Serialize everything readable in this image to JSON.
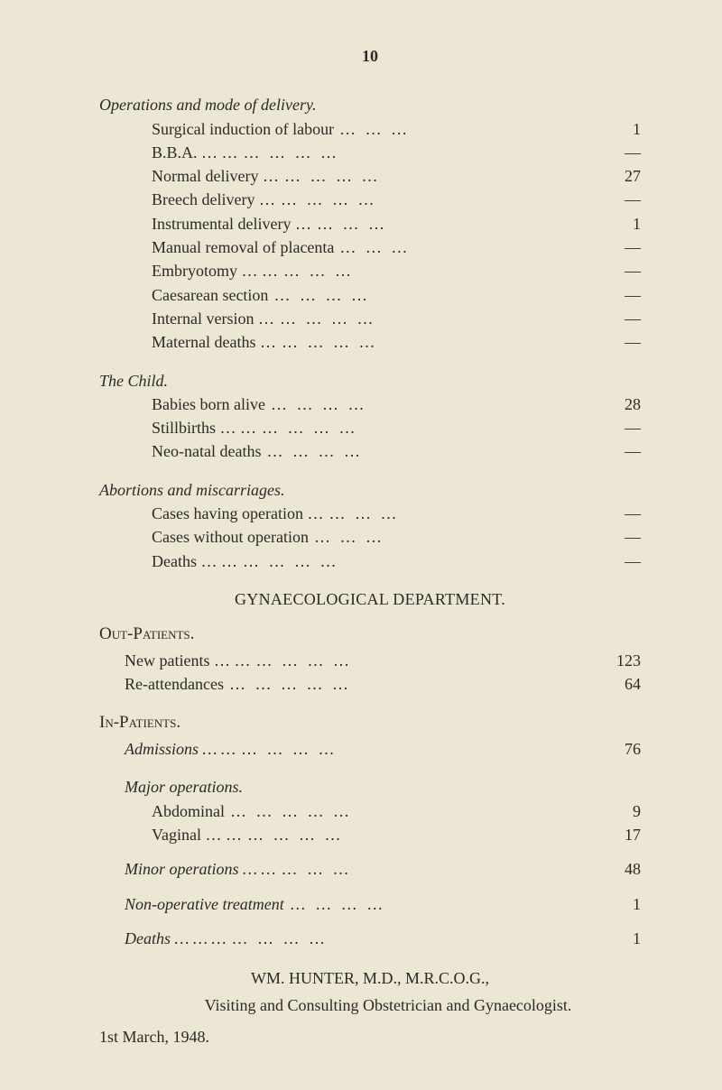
{
  "page_number": "10",
  "sections": {
    "operations": {
      "heading": "Operations and mode of delivery.",
      "rows": [
        {
          "label": "Surgical induction of labour",
          "dots": "…    …    …",
          "value": "1"
        },
        {
          "label": "B.B.A.    …    …",
          "dots": "…    …    …    …",
          "value": "—"
        },
        {
          "label": "Normal delivery …",
          "dots": "…    …    …    …",
          "value": "27"
        },
        {
          "label": "Breech delivery  …",
          "dots": "…    …    …    …",
          "value": "—"
        },
        {
          "label": "Instrumental delivery   …",
          "dots": "…    …    …",
          "value": "1"
        },
        {
          "label": "Manual removal of placenta",
          "dots": "…    …    …",
          "value": "—"
        },
        {
          "label": "Embryotomy     …    …",
          "dots": "…    …    …",
          "value": "—"
        },
        {
          "label": "Caesarean section",
          "dots": "…    …    …    …",
          "value": "—"
        },
        {
          "label": "Internal version …",
          "dots": "…    …    …    …",
          "value": "—"
        },
        {
          "label": "Maternal deaths …",
          "dots": "…    …    …    …",
          "value": "—"
        }
      ]
    },
    "child": {
      "heading": "The Child.",
      "rows": [
        {
          "label": "Babies born alive",
          "dots": "…    …    …    …",
          "value": "28"
        },
        {
          "label": "Stillbirths …    …",
          "dots": "…    …    …    …",
          "value": "—"
        },
        {
          "label": "Neo-natal deaths",
          "dots": "…    …    …    …",
          "value": "—"
        }
      ]
    },
    "abortions": {
      "heading": "Abortions and miscarriages.",
      "rows": [
        {
          "label": "Cases having operation  …",
          "dots": "…    …    …",
          "value": "—"
        },
        {
          "label": "Cases without operation",
          "dots": "…    …    …",
          "value": "—"
        },
        {
          "label": "Deaths    …     …",
          "dots": "…    …    …    …",
          "value": "—"
        }
      ]
    }
  },
  "dept_heading": "GYNAECOLOGICAL DEPARTMENT.",
  "outpatients": {
    "heading": "Out-Patients.",
    "rows": [
      {
        "label": "New patients …    …",
        "dots": "…    …    …    …",
        "value": "123"
      },
      {
        "label": "Re-attendances",
        "dots": "…    …    …    …    …",
        "value": "64"
      }
    ]
  },
  "inpatients_heading": "In-Patients.",
  "admissions": {
    "rows": [
      {
        "label": "Admissions     …     …",
        "dots": "…    …    …    …",
        "value": "76"
      }
    ]
  },
  "major": {
    "heading": "Major operations.",
    "rows": [
      {
        "label": "Abdominal",
        "dots": "…    …    …    …    …",
        "value": "9"
      },
      {
        "label": "Vaginal    …    …",
        "dots": "…    …    …    …",
        "value": "17"
      }
    ]
  },
  "minor": {
    "rows": [
      {
        "label": "Minor operations      …     …",
        "dots": "…    …    …",
        "value": "48"
      }
    ]
  },
  "nonop": {
    "rows": [
      {
        "label": "Non-operative treatment",
        "dots": "…    …    …    …",
        "value": "1"
      }
    ]
  },
  "deaths": {
    "rows": [
      {
        "label": "Deaths …    …    …",
        "dots": "…    …    …    …",
        "value": "1"
      }
    ]
  },
  "footer": {
    "name": "WM. HUNTER, M.D., M.R.C.O.G.,",
    "role": "Visiting and Consulting Obstetrician and Gynaecologist.",
    "date": "1st March, 1948."
  }
}
